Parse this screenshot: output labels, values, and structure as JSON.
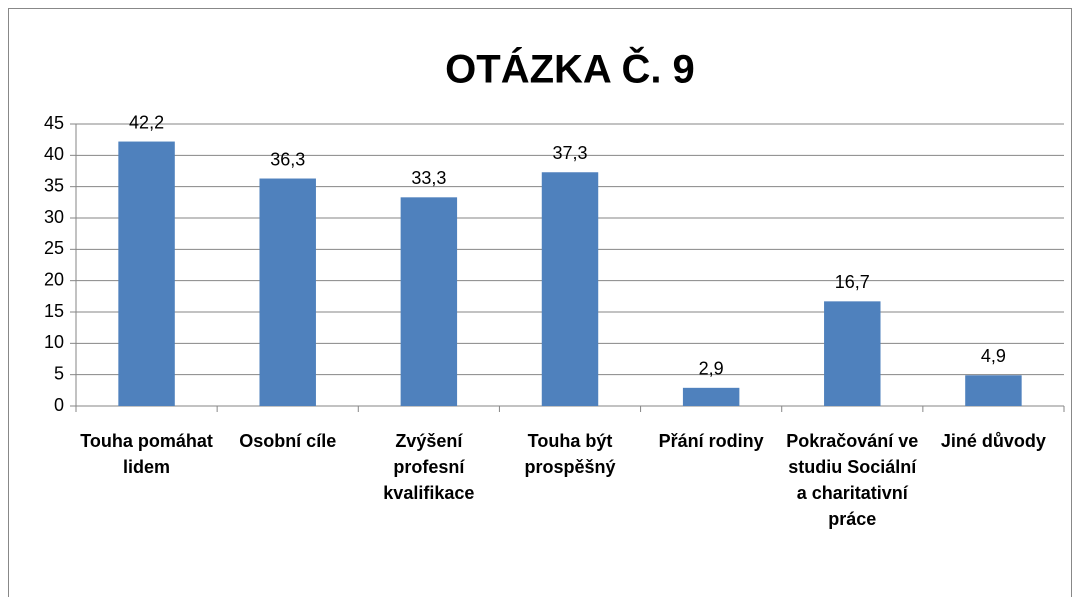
{
  "chart_data": {
    "type": "bar",
    "title": "OTÁZKA Č. 9",
    "categories": [
      "Touha pomáhat lidem",
      "Osobní cíle",
      "Zvýšení profesní kvalifikace",
      "Touha být prospěšný",
      "Přání rodiny",
      "Pokračování ve studiu Sociální a charitativní práce",
      "Jiné důvody"
    ],
    "values": [
      42.2,
      36.3,
      33.3,
      37.3,
      2.9,
      16.7,
      4.9
    ],
    "value_labels": [
      "42,2",
      "36,3",
      "33,3",
      "37,3",
      "2,9",
      "16,7",
      "4,9"
    ],
    "color": "#4f81bd",
    "ylim": [
      0,
      45
    ],
    "yticks": [
      0,
      5,
      10,
      15,
      20,
      25,
      30,
      35,
      40,
      45
    ],
    "grid": true
  }
}
